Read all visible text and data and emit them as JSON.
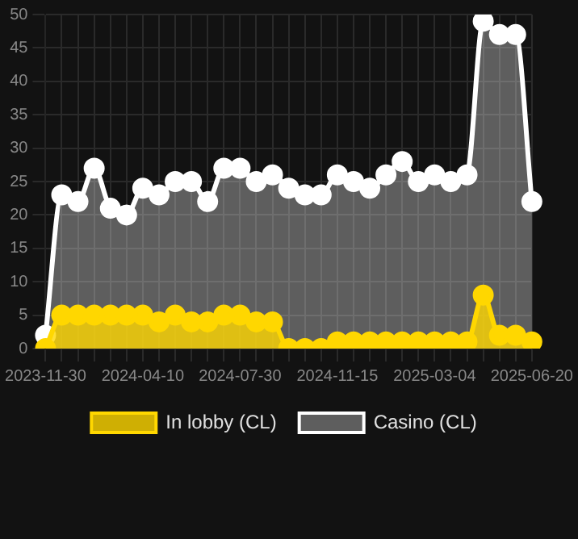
{
  "chart_data": {
    "type": "area",
    "categories": [
      "2023-11-30",
      null,
      null,
      null,
      null,
      null,
      "2024-04-10",
      null,
      null,
      null,
      null,
      null,
      "2024-07-30",
      null,
      null,
      null,
      null,
      null,
      "2024-11-15",
      null,
      null,
      null,
      null,
      null,
      "2025-03-04",
      null,
      null,
      null,
      null,
      null,
      "2025-06-20"
    ],
    "series": [
      {
        "name": "In lobby (CL)",
        "color": "#ffd700",
        "values": [
          0,
          5,
          5,
          5,
          5,
          5,
          5,
          4,
          5,
          4,
          4,
          5,
          5,
          4,
          4,
          0,
          0,
          0,
          1,
          1,
          1,
          1,
          1,
          1,
          1,
          1,
          1,
          8,
          2,
          2,
          1
        ]
      },
      {
        "name": "Casino (CL)",
        "color": "#ffffff",
        "values": [
          2,
          23,
          22,
          27,
          21,
          20,
          24,
          23,
          25,
          25,
          22,
          27,
          27,
          25,
          26,
          24,
          23,
          23,
          26,
          25,
          24,
          26,
          28,
          25,
          26,
          25,
          26,
          49,
          47,
          47,
          22
        ]
      }
    ],
    "ylim": [
      0,
      50
    ],
    "yticks": [
      0,
      5,
      10,
      15,
      20,
      25,
      30,
      35,
      40,
      45,
      50
    ],
    "grid": true,
    "legend": "bottom",
    "marker": "circle"
  }
}
